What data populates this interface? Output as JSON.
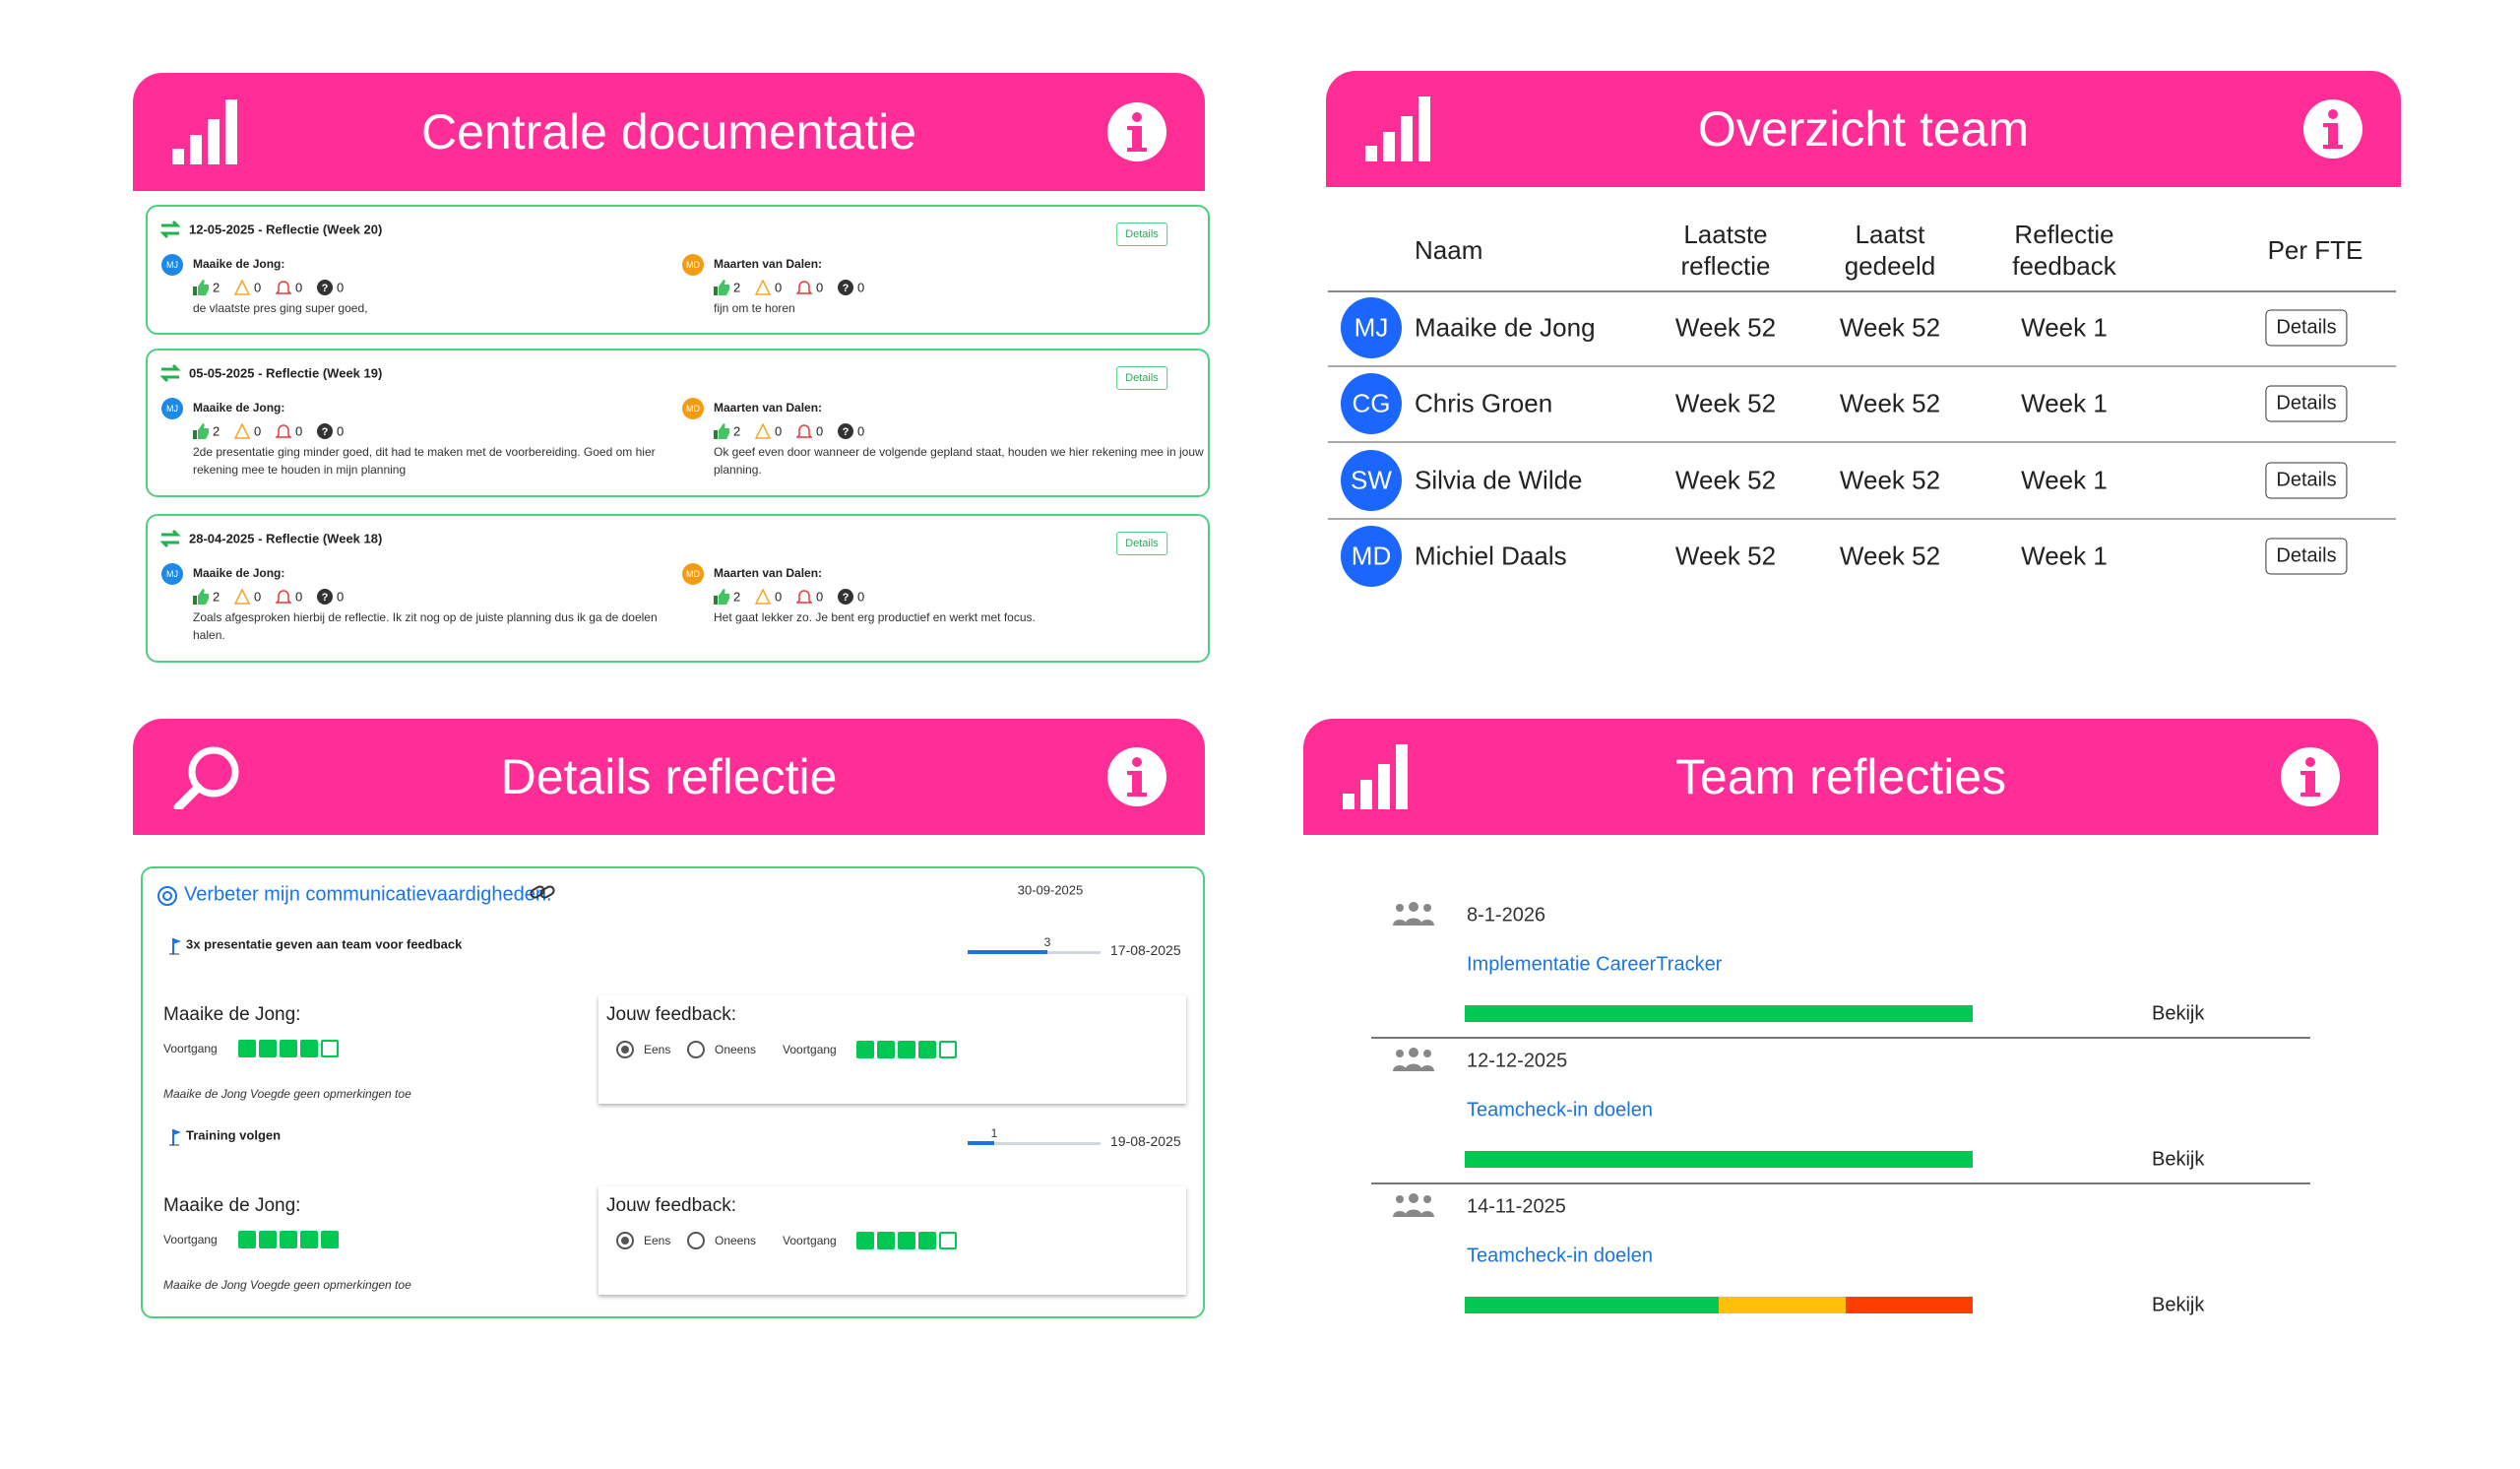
{
  "central": {
    "title": "Centrale documentatie",
    "entries": [
      {
        "heading": "12-05-2025 - Reflectie (Week 20)",
        "action": "Details",
        "people": [
          {
            "initials": "MJ",
            "color": "#1e88e5",
            "name": "Maaike de Jong:",
            "counts": [
              2,
              0,
              0,
              0
            ],
            "text": "de vlaatste pres ging super goed,"
          },
          {
            "initials": "MD",
            "color": "#f39c12",
            "name": "Maarten van Dalen:",
            "counts": [
              2,
              0,
              0,
              0
            ],
            "text": "fijn om te horen"
          }
        ]
      },
      {
        "heading": "05-05-2025 - Reflectie (Week 19)",
        "action": "Details",
        "people": [
          {
            "initials": "MJ",
            "color": "#1e88e5",
            "name": "Maaike de Jong:",
            "counts": [
              2,
              0,
              0,
              0
            ],
            "text": "2de presentatie ging minder goed, dit had te maken met de voorbereiding. Goed om hier rekening mee te houden in mijn planning"
          },
          {
            "initials": "MD",
            "color": "#f39c12",
            "name": "Maarten van Dalen:",
            "counts": [
              2,
              0,
              0,
              0
            ],
            "text": "Ok geef even door wanneer de volgende gepland staat, houden we hier rekening mee in jouw planning."
          }
        ]
      },
      {
        "heading": "28-04-2025 - Reflectie (Week 18)",
        "action": "Details",
        "people": [
          {
            "initials": "MJ",
            "color": "#1e88e5",
            "name": "Maaike de Jong:",
            "counts": [
              2,
              0,
              0,
              0
            ],
            "text": "Zoals afgesproken hierbij de reflectie. Ik zit nog op de juiste planning dus ik ga de doelen halen."
          },
          {
            "initials": "MD",
            "color": "#f39c12",
            "name": "Maarten van Dalen:",
            "counts": [
              2,
              0,
              0,
              0
            ],
            "text": "Het gaat lekker zo. Je bent erg productief en werkt met focus."
          }
        ]
      }
    ]
  },
  "team": {
    "title": "Overzicht team",
    "headers": [
      "Naam",
      "Laatste reflectie",
      "Laatst gedeeld",
      "Reflectie feedback",
      "Per FTE"
    ],
    "rows": [
      {
        "initials": "MJ",
        "name": "Maaike de Jong",
        "last": "Week 52",
        "shared": "Week 52",
        "feedback": "Week 1",
        "action": "Details"
      },
      {
        "initials": "CG",
        "name": "Chris Groen",
        "last": "Week 52",
        "shared": "Week 52",
        "feedback": "Week 1",
        "action": "Details"
      },
      {
        "initials": "SW",
        "name": "Silvia de Wilde",
        "last": "Week 52",
        "shared": "Week 52",
        "feedback": "Week 1",
        "action": "Details"
      },
      {
        "initials": "MD",
        "name": "Michiel Daals",
        "last": "Week 52",
        "shared": "Week 52",
        "feedback": "Week 1",
        "action": "Details"
      }
    ]
  },
  "details": {
    "title": "Details reflectie",
    "goal": "Verbeter mijn communicatievaardigheden.",
    "date": "30-09-2025",
    "scale": 5,
    "actions": [
      {
        "title": "3x presentatie geven aan team voor feedback",
        "progress": 3,
        "date": "17-08-2025",
        "person": "Maaike de Jong:",
        "progress_label": "Voortgang",
        "self_progress": 4,
        "note": "Maaike de Jong Voegde geen opmerkingen toe",
        "feedback_title": "Jouw feedback:",
        "options": [
          "Eens",
          "Oneens"
        ],
        "selected": 0,
        "feedback_label": "Voortgang",
        "feedback_progress": 4
      },
      {
        "title": "Training volgen",
        "progress": 1,
        "date": "19-08-2025",
        "person": "Maaike de Jong:",
        "progress_label": "Voortgang",
        "self_progress": 5,
        "note": "Maaike de Jong Voegde geen opmerkingen toe",
        "feedback_title": "Jouw feedback:",
        "options": [
          "Eens",
          "Oneens"
        ],
        "selected": 0,
        "feedback_label": "Voortgang",
        "feedback_progress": 4
      }
    ]
  },
  "team_reflections": {
    "title": "Team reflecties",
    "items": [
      {
        "date": "8-1-2026",
        "title": "Implementatie CareerTracker",
        "segments": [
          {
            "value": 100,
            "color": "#00c853"
          }
        ],
        "action": "Bekijk"
      },
      {
        "date": "12-12-2025",
        "title": "Teamcheck-in doelen",
        "segments": [
          {
            "value": 100,
            "color": "#00c853"
          }
        ],
        "action": "Bekijk"
      },
      {
        "date": "14-11-2025",
        "title": "Teamcheck-in doelen",
        "segments": [
          {
            "value": 50,
            "color": "#00c853"
          },
          {
            "value": 25,
            "color": "#ffc107"
          },
          {
            "value": 25,
            "color": "#ff3d00"
          }
        ],
        "action": "Bekijk"
      }
    ]
  }
}
